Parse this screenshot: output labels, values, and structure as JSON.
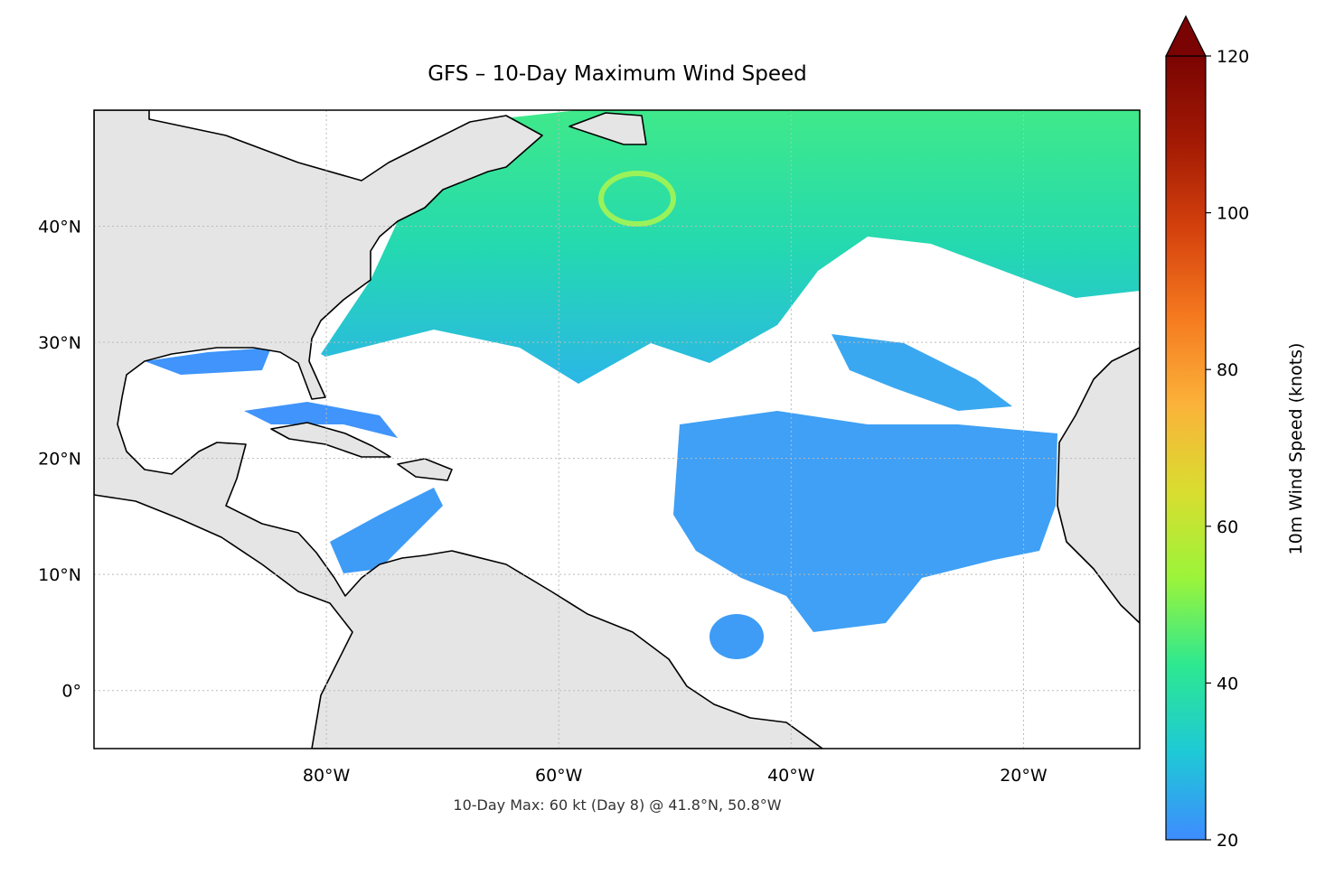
{
  "chart_data": {
    "type": "map",
    "title": "GFS – 10-Day Maximum Wind Speed",
    "annotation": "10-Day Max: 60 kt (Day 8) @ 41.8°N, 50.8°W",
    "xlim": [
      -100,
      -10
    ],
    "ylim": [
      -5,
      50
    ],
    "xticks": [
      {
        "value": -80,
        "label": "80°W"
      },
      {
        "value": -60,
        "label": "60°W"
      },
      {
        "value": -40,
        "label": "40°W"
      },
      {
        "value": -20,
        "label": "20°W"
      }
    ],
    "yticks": [
      {
        "value": 0,
        "label": "0°"
      },
      {
        "value": 10,
        "label": "10°N"
      },
      {
        "value": 20,
        "label": "20°N"
      },
      {
        "value": 30,
        "label": "30°N"
      },
      {
        "value": 40,
        "label": "40°N"
      }
    ],
    "grid": true,
    "colorbar": {
      "label": "10m Wind Speed (knots)",
      "lim": [
        20,
        120
      ],
      "ticks": [
        20,
        40,
        60,
        80,
        100,
        120
      ],
      "colors": [
        "#3e8cff",
        "#1ec9d6",
        "#2de891",
        "#9bf43a",
        "#d9dd30",
        "#fbb23a",
        "#f57a1f",
        "#d5420d",
        "#a31a04",
        "#7a0403"
      ]
    }
  }
}
